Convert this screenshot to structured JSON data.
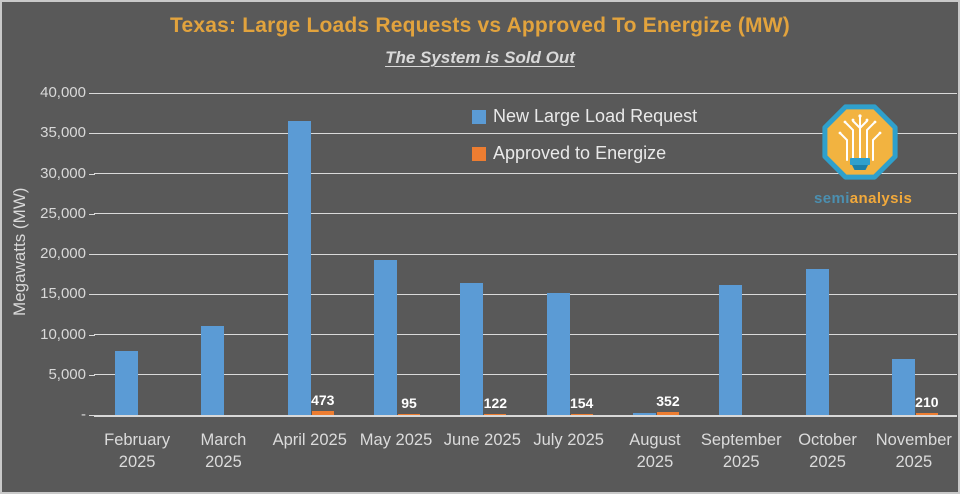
{
  "chart_data": {
    "type": "bar",
    "title": "Texas: Large Loads Requests vs Approved To Energize (MW)",
    "subtitle": "The System is Sold Out",
    "ylabel": "Megawatts (MW)",
    "ylim": [
      0,
      40000
    ],
    "grid": true,
    "legend_position": "inside-top-center",
    "yticks": [
      {
        "value": 0,
        "label": "-"
      },
      {
        "value": 5000,
        "label": "5,000"
      },
      {
        "value": 10000,
        "label": "10,000"
      },
      {
        "value": 15000,
        "label": "15,000"
      },
      {
        "value": 20000,
        "label": "20,000"
      },
      {
        "value": 25000,
        "label": "25,000"
      },
      {
        "value": 30000,
        "label": "30,000"
      },
      {
        "value": 35000,
        "label": "35,000"
      },
      {
        "value": 40000,
        "label": "40,000"
      }
    ],
    "categories": [
      "February\n2025",
      "March\n2025",
      "April 2025",
      "May 2025",
      "June 2025",
      "July 2025",
      "August\n2025",
      "September\n2025",
      "October\n2025",
      "November\n2025"
    ],
    "series": [
      {
        "name": "New Large Load Request",
        "color": "#5B9BD5",
        "values": [
          8000,
          11000,
          36500,
          19200,
          16400,
          15100,
          300,
          16100,
          18100,
          7000
        ],
        "show_data_labels": false
      },
      {
        "name": "Approved to Energize",
        "color": "#ED7D31",
        "values": [
          0,
          0,
          473,
          95,
          122,
          154,
          352,
          0,
          0,
          210
        ],
        "show_data_labels": true
      }
    ]
  },
  "colors": {
    "background": "#595959",
    "title": "#E2A33D",
    "axis_text": "#D9D9D9",
    "gridline": "#FFFFFF",
    "data_label": "#FFFFFF"
  },
  "logo": {
    "brand_semi": "semi",
    "brand_analysis": "analysis"
  }
}
